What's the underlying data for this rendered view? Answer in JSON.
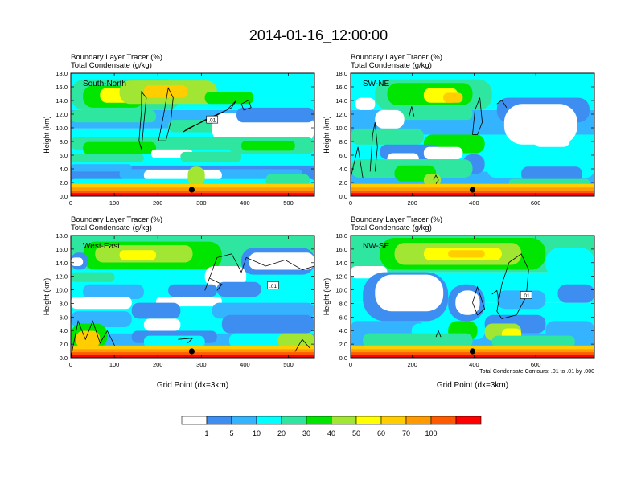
{
  "title": "2014-01-16_12:00:00",
  "colors": {
    "levels": [
      "#ffffff",
      "#3d8ef0",
      "#34b4ff",
      "#00ffff",
      "#2ee6a0",
      "#00e600",
      "#a0e632",
      "#ffff00",
      "#ffcd00",
      "#ff9b00",
      "#ff5a00",
      "#ff0000"
    ],
    "contour": "#000000"
  },
  "chart_data": [
    {
      "type": "heatmap",
      "panel_label": "South-North",
      "header_line1": "Boundary Layer Tracer   (%)",
      "header_line2": "Total Condensate   (g/kg)",
      "ylabel": "Height (km)",
      "xlabel": "",
      "xlim": [
        0,
        560
      ],
      "ylim": [
        0,
        18
      ],
      "xticks": [
        0,
        100,
        200,
        300,
        400,
        500
      ],
      "yticks": [
        "0.0",
        "2.0",
        "4.0",
        "6.0",
        "8.0",
        "10.0",
        "12.0",
        "14.0",
        "16.0",
        "18.0"
      ],
      "marker_x": 278,
      "contour_label": ".01"
    },
    {
      "type": "heatmap",
      "panel_label": "SW-NE",
      "header_line1": "Boundary Layer Tracer   (%)",
      "header_line2": "Total Condensate   (g/kg)",
      "ylabel": "Height (km)",
      "xlabel": "",
      "xlim": [
        0,
        790
      ],
      "ylim": [
        0,
        18
      ],
      "xticks": [
        0,
        200,
        400,
        600
      ],
      "yticks": [
        "0.0",
        "2.0",
        "4.0",
        "6.0",
        "8.0",
        "10.0",
        "12.0",
        "14.0",
        "16.0",
        "18.0"
      ],
      "marker_x": 395,
      "contour_label": ""
    },
    {
      "type": "heatmap",
      "panel_label": "West-East",
      "header_line1": "Boundary Layer Tracer   (%)",
      "header_line2": "Total Condensate   (g/kg)",
      "ylabel": "Height (km)",
      "xlabel": "Grid Point (dx=3km)",
      "xlim": [
        0,
        560
      ],
      "ylim": [
        0,
        18
      ],
      "xticks": [
        0,
        100,
        200,
        300,
        400,
        500
      ],
      "yticks": [
        "0.0",
        "2.0",
        "4.0",
        "6.0",
        "8.0",
        "10.0",
        "12.0",
        "14.0",
        "16.0",
        "18.0"
      ],
      "marker_x": 278,
      "contour_label": ".01"
    },
    {
      "type": "heatmap",
      "panel_label": "NW-SE",
      "header_line1": "Boundary Layer Tracer   (%)",
      "header_line2": "Total Condensate   (g/kg)",
      "ylabel": "Height (km)",
      "xlabel": "Grid Point (dx=3km)",
      "xlim": [
        0,
        790
      ],
      "ylim": [
        0,
        18
      ],
      "xticks": [
        0,
        200,
        400,
        600
      ],
      "yticks": [
        "0.0",
        "2.0",
        "4.0",
        "6.0",
        "8.0",
        "10.0",
        "12.0",
        "14.0",
        "16.0",
        "18.0"
      ],
      "marker_x": 395,
      "contour_label": ".01",
      "footnote": "Total Condensate Contours: .01 to .01 by .000"
    }
  ],
  "legend": {
    "labels": [
      "1",
      "5",
      "10",
      "20",
      "30",
      "40",
      "50",
      "60",
      "70",
      "100"
    ]
  }
}
